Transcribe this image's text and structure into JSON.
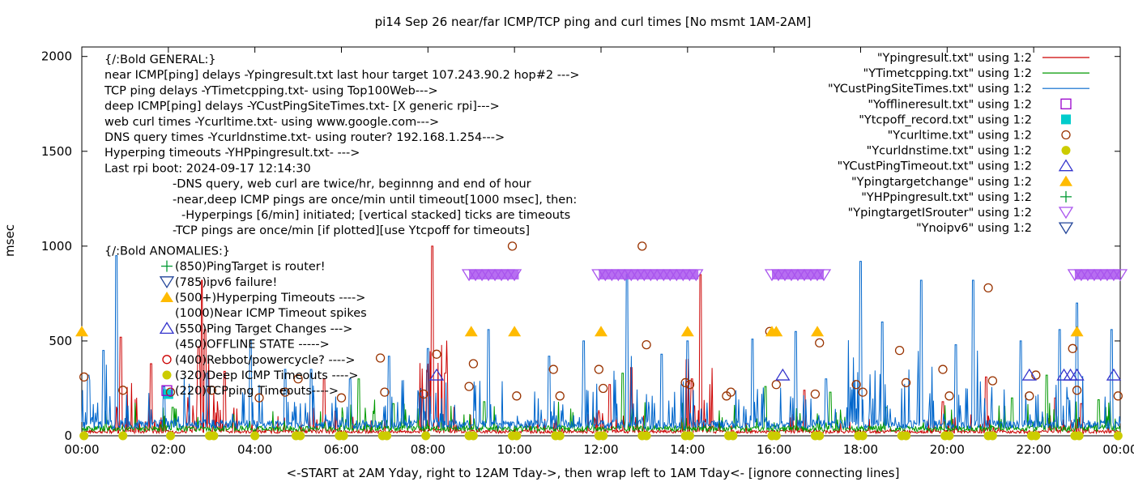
{
  "chart_data": {
    "type": "line",
    "title": "pi14 Sep 26  near/far ICMP/TCP ping and curl times [No msmt 1AM-2AM]",
    "xlabel": "<-START at 2AM Yday, right to 12AM Tday->, then wrap left to 1AM Tday<- [ignore connecting lines]",
    "ylabel": "msec",
    "xlim": [
      0,
      24
    ],
    "ylim": [
      0,
      2050
    ],
    "x_ticks": [
      "00:00",
      "02:00",
      "04:00",
      "06:00",
      "08:00",
      "10:00",
      "12:00",
      "14:00",
      "16:00",
      "18:00",
      "20:00",
      "22:00",
      "00:00"
    ],
    "y_ticks": [
      "0",
      "500",
      "1000",
      "1500",
      "2000"
    ],
    "grid": false,
    "legend_position": "top-right",
    "annotations": [
      "{/:Bold GENERAL:}",
      "near ICMP[ping] delays -Ypingresult.txt last hour target 107.243.90.2 hop#2 --->",
      "TCP ping delays -YTimetcpping.txt- using Top100Web--->",
      "deep ICMP[ping] delays -YCustPingSiteTimes.txt- [X generic rpi]--->",
      "web curl times -Ycurltime.txt- using www.google.com--->",
      "DNS query times -Ycurldnstime.txt- using router? 192.168.1.254--->",
      "Hyperping timeouts -YHPpingresult.txt- --->",
      "Last rpi boot: 2024-09-17 12:14:30",
      "-DNS query, web curl are twice/hr, beginnng and end of hour",
      "-near,deep ICMP pings are once/min until timeout[1000 msec], then:",
      "-Hyperpings [6/min] initiated; [vertical stacked] ticks are timeouts",
      "-TCP pings are once/min [if plotted][use Ytcpoff for timeouts]",
      "{/:Bold ANOMALIES:}",
      "(850)PingTarget is router!",
      "(785)ipv6 failure!",
      "(500+)Hyperping Timeouts ---->",
      "(1000)Near ICMP Timeout spikes",
      "(550)Ping Target Changes --->",
      "(450)OFFLINE STATE ----->",
      "(400)Rebbot/powercycle? ---->",
      "(320)Deep ICMP Timeouts ---->",
      "(220)TCPping Timeouts---->"
    ],
    "series": [
      {
        "name": "\"Ypingresult.txt\" using 1:2",
        "style": "line",
        "color": "#cc0000",
        "baseline": 22,
        "spikes": [
          [
            0.9,
            520
          ],
          [
            1.6,
            380
          ],
          [
            2.7,
            470
          ],
          [
            2.78,
            820
          ],
          [
            2.85,
            560
          ],
          [
            3.3,
            340
          ],
          [
            5.6,
            300
          ],
          [
            8.1,
            1000
          ],
          [
            8.4,
            330
          ],
          [
            12.2,
            270
          ],
          [
            12.7,
            360
          ],
          [
            14.1,
            300
          ],
          [
            14.3,
            850
          ],
          [
            16.7,
            240
          ],
          [
            19.9,
            180
          ],
          [
            20.9,
            310
          ],
          [
            22.5,
            200
          ],
          [
            23.1,
            170
          ]
        ]
      },
      {
        "name": "\"YTimetcpping.txt\" using 1:2",
        "style": "line",
        "color": "#009900",
        "baseline": 38,
        "spikes": [
          [
            2.1,
            150
          ],
          [
            3.5,
            110
          ],
          [
            6.4,
            300
          ],
          [
            7.2,
            170
          ],
          [
            9.3,
            180
          ],
          [
            12.5,
            330
          ],
          [
            15.8,
            260
          ],
          [
            17.3,
            230
          ],
          [
            18.6,
            150
          ],
          [
            21.5,
            200
          ],
          [
            22.3,
            320
          ],
          [
            23.5,
            190
          ]
        ]
      },
      {
        "name": "\"YCustPingSiteTimes.txt\" using 1:2",
        "style": "line",
        "color": "#0066cc",
        "baseline": 60,
        "spikes": [
          [
            0.15,
            320
          ],
          [
            0.5,
            450
          ],
          [
            0.8,
            950
          ],
          [
            1.9,
            260
          ],
          [
            2.9,
            330
          ],
          [
            3.9,
            500
          ],
          [
            4.7,
            350
          ],
          [
            5.3,
            350
          ],
          [
            6.2,
            300
          ],
          [
            7.1,
            420
          ],
          [
            8.0,
            460
          ],
          [
            9.4,
            560
          ],
          [
            10.8,
            420
          ],
          [
            11.6,
            500
          ],
          [
            12.6,
            850
          ],
          [
            13.4,
            430
          ],
          [
            14.0,
            500
          ],
          [
            15.5,
            510
          ],
          [
            16.5,
            550
          ],
          [
            17.2,
            300
          ],
          [
            18.0,
            920
          ],
          [
            18.5,
            600
          ],
          [
            19.4,
            820
          ],
          [
            20.2,
            480
          ],
          [
            20.6,
            820
          ],
          [
            21.7,
            500
          ],
          [
            22.6,
            560
          ],
          [
            23.0,
            700
          ],
          [
            23.8,
            560
          ]
        ]
      },
      {
        "name": "\"Yofflineresult.txt\" using 1:2",
        "style": "open-square",
        "color": "#9900cc",
        "points": []
      },
      {
        "name": "\"Ytcpoff_record.txt\" using 1:2",
        "style": "filled-square",
        "color": "#00cccc",
        "points": [
          [
            2.0,
            220
          ]
        ]
      },
      {
        "name": "\"Ycurltime.txt\" using 1:2",
        "style": "open-circle",
        "color": "#993300",
        "points": [
          [
            0.05,
            310
          ],
          [
            0.95,
            240
          ],
          [
            2.05,
            230
          ],
          [
            3.0,
            240
          ],
          [
            4.1,
            200
          ],
          [
            4.7,
            230
          ],
          [
            5.0,
            300
          ],
          [
            6.0,
            200
          ],
          [
            6.9,
            410
          ],
          [
            7.0,
            230
          ],
          [
            7.9,
            220
          ],
          [
            8.2,
            430
          ],
          [
            8.95,
            260
          ],
          [
            9.05,
            380
          ],
          [
            9.95,
            1000
          ],
          [
            10.05,
            210
          ],
          [
            10.9,
            350
          ],
          [
            11.05,
            210
          ],
          [
            11.95,
            350
          ],
          [
            12.05,
            250
          ],
          [
            12.95,
            1000
          ],
          [
            13.05,
            480
          ],
          [
            13.95,
            280
          ],
          [
            14.05,
            270
          ],
          [
            14.9,
            210
          ],
          [
            15.0,
            230
          ],
          [
            15.9,
            550
          ],
          [
            16.05,
            270
          ],
          [
            16.95,
            220
          ],
          [
            17.05,
            490
          ],
          [
            17.9,
            270
          ],
          [
            18.05,
            230
          ],
          [
            18.9,
            450
          ],
          [
            19.05,
            280
          ],
          [
            19.9,
            350
          ],
          [
            20.05,
            210
          ],
          [
            20.95,
            780
          ],
          [
            21.05,
            290
          ],
          [
            21.9,
            210
          ],
          [
            22.05,
            320
          ],
          [
            22.9,
            460
          ],
          [
            23.0,
            240
          ],
          [
            23.95,
            210
          ]
        ]
      },
      {
        "name": "\"Ycurldnstime.txt\" using 1:2",
        "style": "filled-circle",
        "color": "#cccc00",
        "points": [
          [
            0.05,
            0
          ],
          [
            0.95,
            0
          ],
          [
            2.05,
            0
          ],
          [
            2.95,
            0
          ],
          [
            3.05,
            0
          ],
          [
            4.0,
            0
          ],
          [
            4.95,
            0
          ],
          [
            5.05,
            0
          ],
          [
            5.95,
            0
          ],
          [
            6.05,
            0
          ],
          [
            6.95,
            0
          ],
          [
            7.05,
            0
          ],
          [
            7.95,
            0
          ],
          [
            8.95,
            0
          ],
          [
            9.05,
            0
          ],
          [
            9.95,
            0
          ],
          [
            10.05,
            0
          ],
          [
            10.95,
            0
          ],
          [
            11.05,
            0
          ],
          [
            11.95,
            0
          ],
          [
            12.05,
            0
          ],
          [
            12.95,
            0
          ],
          [
            13.05,
            0
          ],
          [
            13.95,
            0
          ],
          [
            14.05,
            0
          ],
          [
            14.95,
            0
          ],
          [
            15.05,
            0
          ],
          [
            15.95,
            0
          ],
          [
            16.05,
            0
          ],
          [
            16.95,
            0
          ],
          [
            17.05,
            0
          ],
          [
            17.95,
            0
          ],
          [
            18.05,
            0
          ],
          [
            18.95,
            0
          ],
          [
            19.05,
            0
          ],
          [
            19.95,
            0
          ],
          [
            20.05,
            0
          ],
          [
            20.95,
            0
          ],
          [
            21.05,
            0
          ],
          [
            21.95,
            0
          ],
          [
            22.05,
            0
          ],
          [
            22.95,
            0
          ],
          [
            23.05,
            0
          ],
          [
            23.95,
            0
          ]
        ]
      },
      {
        "name": "\"YCustPingTimeout.txt\" using 1:2",
        "style": "open-triangle-up",
        "color": "#3333cc",
        "points": [
          [
            8.2,
            320
          ],
          [
            16.2,
            320
          ],
          [
            21.9,
            320
          ],
          [
            22.7,
            320
          ],
          [
            22.85,
            320
          ],
          [
            23.0,
            320
          ],
          [
            23.85,
            320
          ]
        ]
      },
      {
        "name": "\"Ypingtargetchange\" using 1:2",
        "style": "filled-triangle-up",
        "color": "#ffbb00",
        "points": [
          [
            0.0,
            550
          ],
          [
            9.0,
            550
          ],
          [
            10.0,
            550
          ],
          [
            12.0,
            550
          ],
          [
            14.0,
            550
          ],
          [
            15.95,
            550
          ],
          [
            16.05,
            550
          ],
          [
            17.0,
            550
          ],
          [
            23.0,
            550
          ]
        ]
      },
      {
        "name": "\"YHPpingresult.txt\" using 1:2",
        "style": "plus",
        "color": "#009933",
        "points": []
      },
      {
        "name": "\"YpingtargetISrouter\" using 1:2",
        "style": "open-triangle-down",
        "color": "#aa55ee",
        "range_bands": [
          [
            8.95,
            10.1
          ],
          [
            11.95,
            14.25
          ],
          [
            15.95,
            17.15
          ],
          [
            22.95,
            24.0
          ]
        ],
        "value": 850
      },
      {
        "name": "\"Ynoipv6\" using 1:2",
        "style": "open-triangle-down",
        "color": "#224499",
        "points": []
      }
    ]
  }
}
